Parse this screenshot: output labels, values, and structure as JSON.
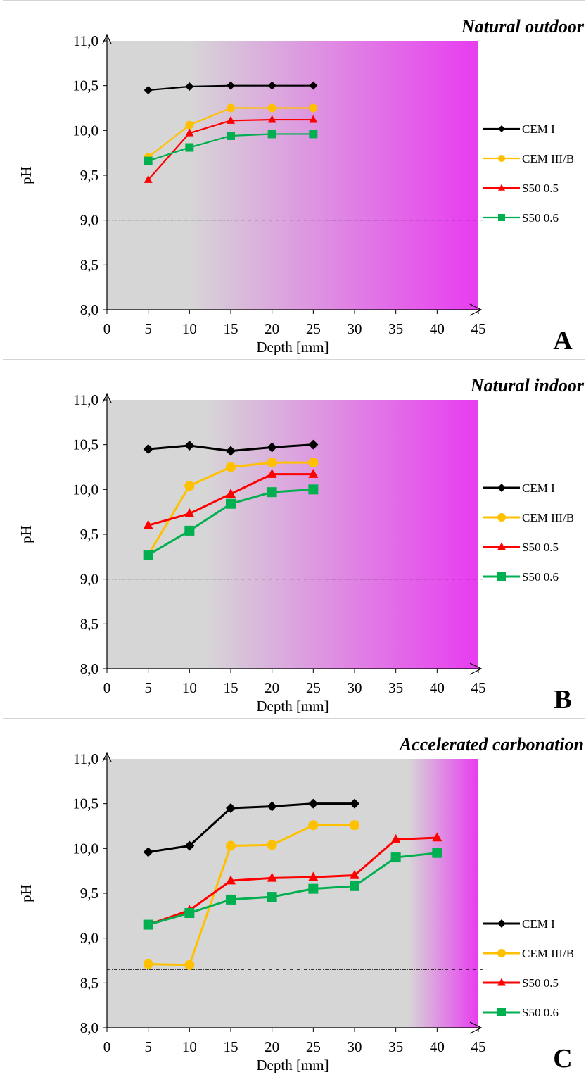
{
  "chart_data": [
    {
      "type": "line",
      "panel_letter": "A",
      "title": "Natural outdoor",
      "xlabel": "Depth [mm]",
      "ylabel": "pH",
      "xlim": [
        0,
        45
      ],
      "ylim": [
        8.0,
        11.0
      ],
      "xticks": [
        "0",
        "5",
        "10",
        "15",
        "20",
        "25",
        "30",
        "35",
        "40",
        "45"
      ],
      "yticks": [
        "8,0",
        "8,5",
        "9,0",
        "9,5",
        "10,0",
        "10,5",
        "11,0"
      ],
      "threshold_ph": 9.0,
      "background": {
        "start_color": "#d6d6d6",
        "end_color": "#e83cf0",
        "gradient_start_depth": 10,
        "gradient_end_depth": 45
      },
      "legend_position": "right",
      "series": [
        {
          "name": "CEM I",
          "color": "#000000",
          "marker": "diamond",
          "x": [
            5,
            10,
            15,
            20,
            25
          ],
          "y": [
            10.45,
            10.49,
            10.5,
            10.5,
            10.5
          ]
        },
        {
          "name": "CEM III/B",
          "color": "#ffc000",
          "marker": "circle",
          "x": [
            5,
            10,
            15,
            20,
            25
          ],
          "y": [
            9.7,
            10.06,
            10.25,
            10.25,
            10.25
          ]
        },
        {
          "name": "S50 0.5",
          "color": "#ff0000",
          "marker": "triangle",
          "x": [
            5,
            10,
            15,
            20,
            25
          ],
          "y": [
            9.45,
            9.97,
            10.11,
            10.12,
            10.12
          ]
        },
        {
          "name": "S50 0.6",
          "color": "#00b050",
          "marker": "square",
          "x": [
            5,
            10,
            15,
            20,
            25
          ],
          "y": [
            9.66,
            9.81,
            9.94,
            9.96,
            9.96
          ]
        }
      ]
    },
    {
      "type": "line",
      "panel_letter": "B",
      "title": "Natural indoor",
      "xlabel": "Depth [mm]",
      "ylabel": "pH",
      "xlim": [
        0,
        45
      ],
      "ylim": [
        8.0,
        11.0
      ],
      "xticks": [
        "0",
        "5",
        "10",
        "15",
        "20",
        "25",
        "30",
        "35",
        "40",
        "45"
      ],
      "yticks": [
        "8,0",
        "8,5",
        "9,0",
        "9,5",
        "10,0",
        "10,5",
        "11,0"
      ],
      "threshold_ph": 9.0,
      "background": {
        "start_color": "#d6d6d6",
        "end_color": "#e83cf0",
        "gradient_start_depth": 12,
        "gradient_end_depth": 45
      },
      "legend_position": "right",
      "series": [
        {
          "name": "CEM I",
          "color": "#000000",
          "marker": "diamond",
          "x": [
            5,
            10,
            15,
            20,
            25
          ],
          "y": [
            10.45,
            10.49,
            10.43,
            10.47,
            10.5
          ]
        },
        {
          "name": "CEM III/B",
          "color": "#ffc000",
          "marker": "circle",
          "x": [
            5,
            10,
            15,
            20,
            25
          ],
          "y": [
            9.27,
            10.04,
            10.25,
            10.3,
            10.3
          ]
        },
        {
          "name": "S50 0.5",
          "color": "#ff0000",
          "marker": "triangle",
          "x": [
            5,
            10,
            15,
            20,
            25
          ],
          "y": [
            9.6,
            9.73,
            9.95,
            10.17,
            10.17
          ]
        },
        {
          "name": "S50 0.6",
          "color": "#00b050",
          "marker": "square",
          "x": [
            5,
            10,
            15,
            20,
            25
          ],
          "y": [
            9.27,
            9.54,
            9.84,
            9.97,
            10.0
          ]
        }
      ]
    },
    {
      "type": "line",
      "panel_letter": "C",
      "title": "Accelerated carbonation",
      "xlabel": "Depth [mm]",
      "ylabel": "pH",
      "xlim": [
        0,
        45
      ],
      "ylim": [
        8.0,
        11.0
      ],
      "xticks": [
        "0",
        "5",
        "10",
        "15",
        "20",
        "25",
        "30",
        "35",
        "40",
        "45"
      ],
      "yticks": [
        "8,0",
        "8,5",
        "9,0",
        "9,5",
        "10,0",
        "10,5",
        "11,0"
      ],
      "threshold_ph": 8.65,
      "background": {
        "start_color": "#d6d6d6",
        "end_color": "#e83cf0",
        "gradient_start_depth": 36.5,
        "gradient_end_depth": 45
      },
      "legend_position": "right",
      "series": [
        {
          "name": "CEM I",
          "color": "#000000",
          "marker": "diamond",
          "x": [
            5,
            10,
            15,
            20,
            25,
            30
          ],
          "y": [
            9.96,
            10.03,
            10.45,
            10.47,
            10.5,
            10.5
          ]
        },
        {
          "name": "CEM III/B",
          "color": "#ffc000",
          "marker": "circle",
          "x": [
            5,
            10,
            15,
            20,
            25,
            30
          ],
          "y": [
            8.71,
            8.7,
            10.03,
            10.04,
            10.26,
            10.26
          ]
        },
        {
          "name": "S50 0.5",
          "color": "#ff0000",
          "marker": "triangle",
          "x": [
            5,
            10,
            15,
            20,
            25,
            30,
            35,
            40
          ],
          "y": [
            9.15,
            9.31,
            9.64,
            9.67,
            9.68,
            9.7,
            10.1,
            10.12
          ]
        },
        {
          "name": "S50 0.6",
          "color": "#00b050",
          "marker": "square",
          "x": [
            5,
            10,
            15,
            20,
            25,
            30,
            35,
            40
          ],
          "y": [
            9.15,
            9.28,
            9.43,
            9.46,
            9.55,
            9.58,
            9.9,
            9.95
          ]
        }
      ]
    }
  ]
}
